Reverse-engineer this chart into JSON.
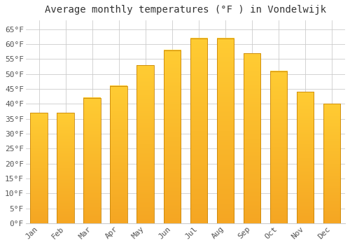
{
  "title": "Average monthly temperatures (°F ) in Vondelwijk",
  "months": [
    "Jan",
    "Feb",
    "Mar",
    "Apr",
    "May",
    "Jun",
    "Jul",
    "Aug",
    "Sep",
    "Oct",
    "Nov",
    "Dec"
  ],
  "values": [
    37,
    37,
    42,
    46,
    53,
    58,
    62,
    62,
    57,
    51,
    44,
    40
  ],
  "bar_color_top": "#FFCC33",
  "bar_color_bottom": "#F5A623",
  "bar_edge_color": "#C8860A",
  "background_color": "#FFFFFF",
  "grid_color": "#CCCCCC",
  "ylim": [
    0,
    68
  ],
  "yticks": [
    0,
    5,
    10,
    15,
    20,
    25,
    30,
    35,
    40,
    45,
    50,
    55,
    60,
    65
  ],
  "title_fontsize": 10,
  "tick_fontsize": 8,
  "font_family": "monospace",
  "title_color": "#333333",
  "tick_color": "#555555"
}
